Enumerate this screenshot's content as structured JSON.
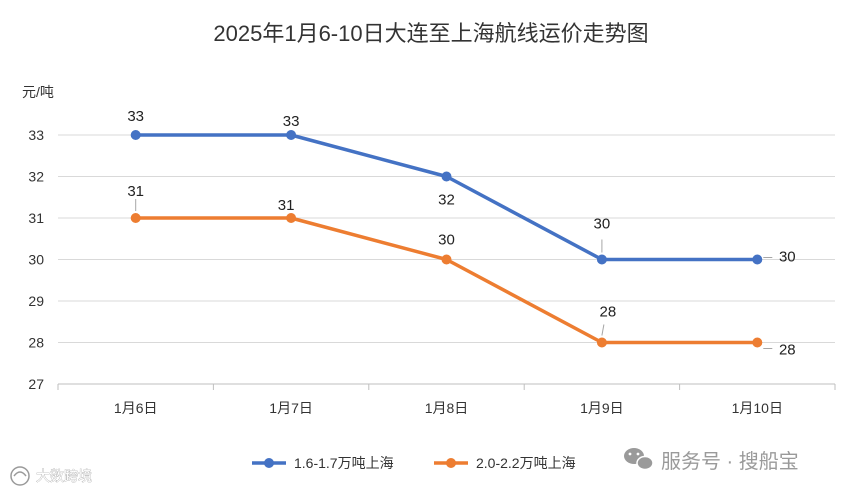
{
  "chart_data": {
    "type": "line",
    "title": "2025年1月6-10日大连至上海航线运价走势图",
    "ylabel": "元/吨",
    "xlabel": "",
    "ylim": [
      27,
      33
    ],
    "yticks": [
      "27",
      "28",
      "29",
      "30",
      "31",
      "32",
      "33"
    ],
    "categories": [
      "1月6日",
      "1月7日",
      "1月8日",
      "1月9日",
      "1月10日"
    ],
    "series": [
      {
        "name": "1.6-1.7万吨上海",
        "color": "#4472C4",
        "values": [
          33,
          33,
          32,
          30,
          30
        ],
        "labels": [
          "33",
          "33",
          "32",
          "30",
          "30"
        ]
      },
      {
        "name": "2.0-2.2万吨上海",
        "color": "#ED7D31",
        "values": [
          31,
          31,
          30,
          28,
          28
        ],
        "labels": [
          "31",
          "31",
          "30",
          "28",
          "28"
        ]
      }
    ],
    "grid": true,
    "legend_position": "bottom"
  },
  "watermark": {
    "right": "服务号 · 搜船宝",
    "left": "大数跨境"
  },
  "colors": {
    "grid": "#d9d9d9",
    "axis": "#bfbfbf",
    "text": "#333333"
  }
}
